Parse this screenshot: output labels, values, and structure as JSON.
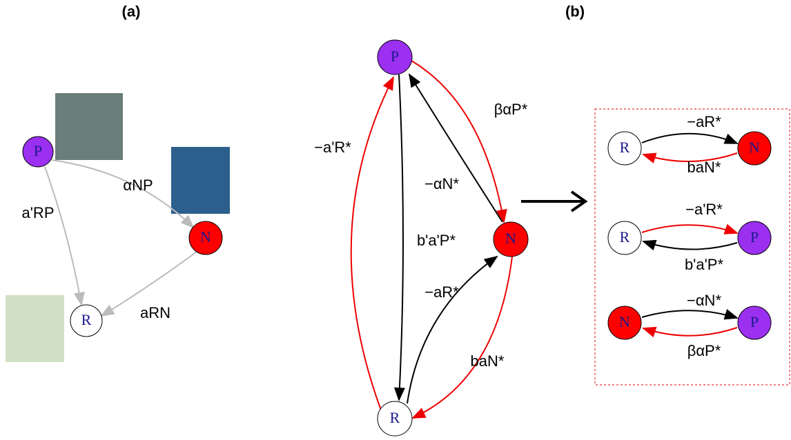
{
  "panel_a": {
    "label": "(a)",
    "nodes": [
      {
        "label": "P"
      },
      {
        "label": "N"
      },
      {
        "label": "R"
      }
    ],
    "edges": [
      {
        "label": "αNP"
      },
      {
        "label": "a'RP"
      },
      {
        "label": "aRN"
      }
    ]
  },
  "panel_b": {
    "label": "(b)",
    "nodes": [
      {
        "label": "P"
      },
      {
        "label": "N"
      },
      {
        "label": "R"
      }
    ],
    "edges": [
      {
        "label": "−a'R*"
      },
      {
        "label": "βαP*"
      },
      {
        "label": "−αN*"
      },
      {
        "label": "b'a'P*"
      },
      {
        "label": "−aR*"
      },
      {
        "label": "baN*"
      }
    ],
    "pairs": [
      {
        "left": "R",
        "right": "N",
        "top": "−aR*",
        "bottom": "baN*"
      },
      {
        "left": "R",
        "right": "P",
        "top": "−a'R*",
        "bottom": "b'a'P*"
      },
      {
        "left": "N",
        "right": "P",
        "top": "−αN*",
        "bottom": "βαP*"
      }
    ]
  }
}
